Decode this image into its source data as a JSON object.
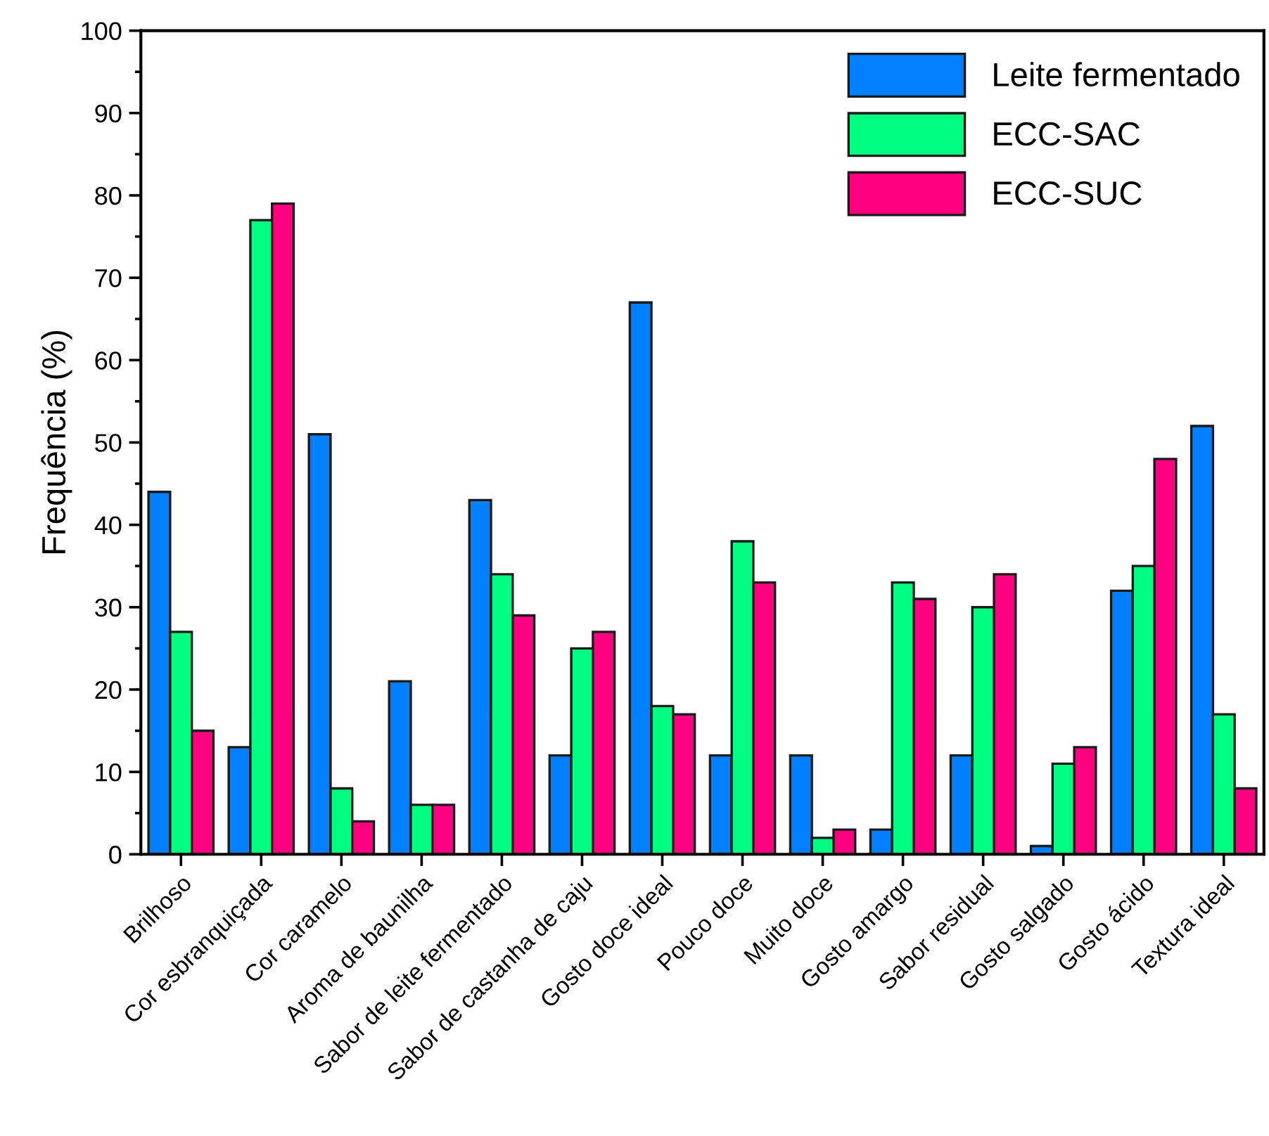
{
  "chart_data": {
    "type": "bar",
    "ylabel": "Frequência (%)",
    "categories": [
      "Brilhoso",
      "Cor esbranquiçada",
      "Cor caramelo",
      "Aroma de baunilha",
      "Sabor de leite fermentado",
      "Sabor de castanha de caju",
      "Gosto doce ideal",
      "Pouco doce",
      "Muito doce",
      "Gosto amargo",
      "Sabor residual",
      "Gosto salgado",
      "Gosto ácido",
      "Textura ideal"
    ],
    "series": [
      {
        "name": "Leite fermentado",
        "color": "#0080ff",
        "values": [
          44,
          13,
          51,
          21,
          43,
          12,
          67,
          12,
          12,
          3,
          12,
          1,
          32,
          52
        ]
      },
      {
        "name": "ECC-SAC",
        "color": "#00ff80",
        "values": [
          27,
          77,
          8,
          6,
          34,
          25,
          18,
          38,
          2,
          33,
          30,
          11,
          35,
          17
        ]
      },
      {
        "name": "ECC-SUC",
        "color": "#ff0080",
        "values": [
          15,
          79,
          4,
          6,
          29,
          27,
          17,
          33,
          3,
          31,
          34,
          13,
          48,
          8
        ]
      }
    ],
    "ylim": [
      0,
      100
    ],
    "yticks": [
      0,
      10,
      20,
      30,
      40,
      50,
      60,
      70,
      80,
      90,
      100
    ],
    "legend": "top right"
  }
}
